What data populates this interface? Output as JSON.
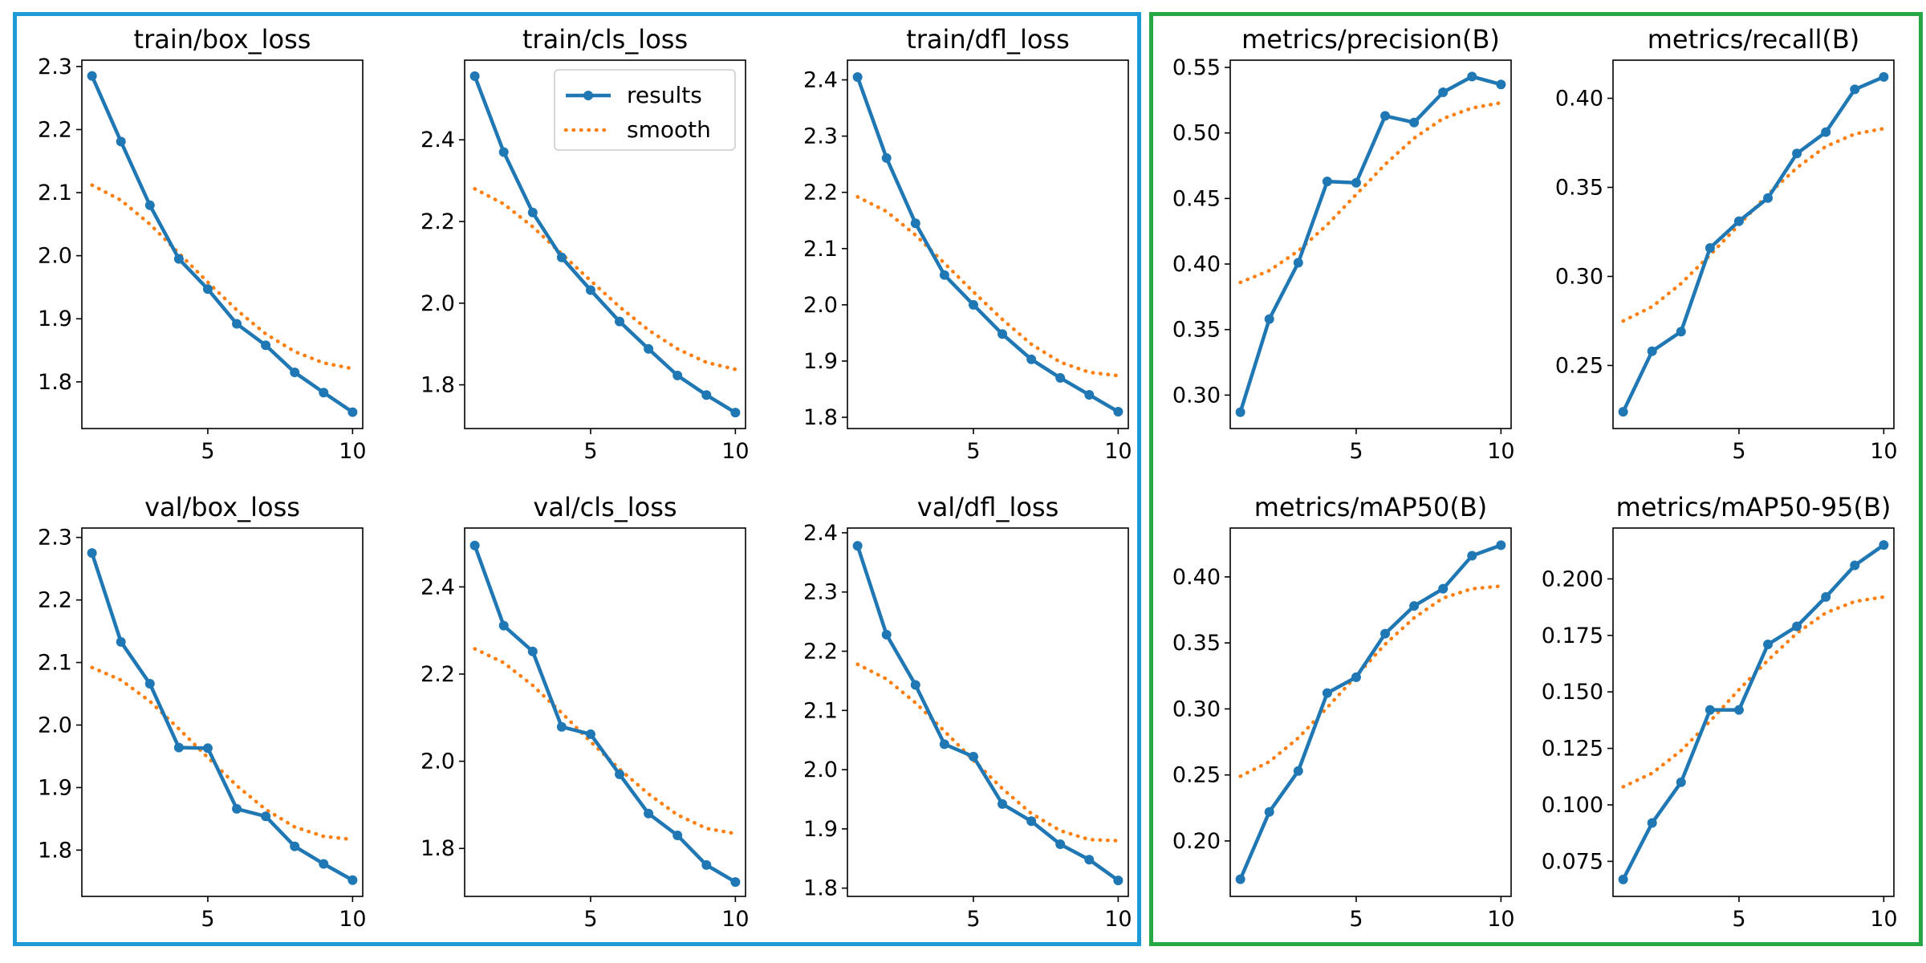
{
  "chart_data": [
    {
      "type": "line",
      "title": "train/box_loss",
      "x": [
        1,
        2,
        3,
        4,
        5,
        6,
        7,
        8,
        9,
        10
      ],
      "series": [
        {
          "name": "results",
          "values": [
            2.285,
            2.181,
            2.08,
            1.995,
            1.947,
            1.892,
            1.858,
            1.815,
            1.783,
            1.752
          ]
        },
        {
          "name": "smooth",
          "values": [
            2.112,
            2.088,
            2.05,
            2.004,
            1.958,
            1.914,
            1.876,
            1.848,
            1.83,
            1.821
          ]
        }
      ],
      "xticks": [
        5,
        10
      ],
      "yticks": [
        1.8,
        1.9,
        2.0,
        2.1,
        2.2,
        2.3
      ],
      "ytick_labels": [
        "1.8",
        "1.9",
        "2.0",
        "2.1",
        "2.2",
        "2.3"
      ],
      "xlim": [
        0.65,
        10.35
      ],
      "ylim": [
        1.726,
        2.31
      ],
      "grid": false
    },
    {
      "type": "line",
      "title": "train/cls_loss",
      "x": [
        1,
        2,
        3,
        4,
        5,
        6,
        7,
        8,
        9,
        10
      ],
      "series": [
        {
          "name": "results",
          "values": [
            2.556,
            2.37,
            2.222,
            2.112,
            2.032,
            1.955,
            1.888,
            1.823,
            1.775,
            1.732
          ]
        },
        {
          "name": "smooth",
          "values": [
            2.28,
            2.243,
            2.187,
            2.121,
            2.055,
            1.991,
            1.934,
            1.888,
            1.855,
            1.838
          ]
        }
      ],
      "xticks": [
        5,
        10
      ],
      "yticks": [
        1.8,
        2.0,
        2.2,
        2.4
      ],
      "ytick_labels": [
        "1.8",
        "2.0",
        "2.2",
        "2.4"
      ],
      "xlim": [
        0.65,
        10.35
      ],
      "ylim": [
        1.693,
        2.595
      ],
      "grid": false,
      "legend": {
        "position": "top-right",
        "entries": [
          "results",
          "smooth"
        ]
      }
    },
    {
      "type": "line",
      "title": "train/dfl_loss",
      "x": [
        1,
        2,
        3,
        4,
        5,
        6,
        7,
        8,
        9,
        10
      ],
      "series": [
        {
          "name": "results",
          "values": [
            2.405,
            2.261,
            2.145,
            2.053,
            2.0,
            1.948,
            1.903,
            1.87,
            1.84,
            1.81
          ]
        },
        {
          "name": "smooth",
          "values": [
            2.192,
            2.166,
            2.124,
            2.074,
            2.023,
            1.974,
            1.93,
            1.898,
            1.88,
            1.874
          ]
        }
      ],
      "xticks": [
        5,
        10
      ],
      "yticks": [
        1.8,
        1.9,
        2.0,
        2.1,
        2.2,
        2.3,
        2.4
      ],
      "ytick_labels": [
        "1.8",
        "1.9",
        "2.0",
        "2.1",
        "2.2",
        "2.3",
        "2.4"
      ],
      "xlim": [
        0.65,
        10.35
      ],
      "ylim": [
        1.78,
        2.435
      ],
      "grid": false
    },
    {
      "type": "line",
      "title": "metrics/precision(B)",
      "x": [
        1,
        2,
        3,
        4,
        5,
        6,
        7,
        8,
        9,
        10
      ],
      "series": [
        {
          "name": "results",
          "values": [
            0.287,
            0.358,
            0.401,
            0.463,
            0.462,
            0.513,
            0.508,
            0.531,
            0.543,
            0.537
          ]
        },
        {
          "name": "smooth",
          "values": [
            0.386,
            0.395,
            0.41,
            0.43,
            0.453,
            0.476,
            0.496,
            0.511,
            0.519,
            0.523
          ]
        }
      ],
      "xticks": [
        5,
        10
      ],
      "yticks": [
        0.3,
        0.35,
        0.4,
        0.45,
        0.5,
        0.55
      ],
      "ytick_labels": [
        "0.30",
        "0.35",
        "0.40",
        "0.45",
        "0.50",
        "0.55"
      ],
      "xlim": [
        0.65,
        10.35
      ],
      "ylim": [
        0.2745,
        0.5555
      ],
      "grid": false
    },
    {
      "type": "line",
      "title": "metrics/recall(B)",
      "x": [
        1,
        2,
        3,
        4,
        5,
        6,
        7,
        8,
        9,
        10
      ],
      "series": [
        {
          "name": "results",
          "values": [
            0.224,
            0.258,
            0.269,
            0.316,
            0.331,
            0.344,
            0.369,
            0.381,
            0.405,
            0.412
          ]
        },
        {
          "name": "smooth",
          "values": [
            0.275,
            0.283,
            0.296,
            0.312,
            0.329,
            0.346,
            0.361,
            0.373,
            0.38,
            0.383
          ]
        }
      ],
      "xticks": [
        5,
        10
      ],
      "yticks": [
        0.25,
        0.3,
        0.35,
        0.4
      ],
      "ytick_labels": [
        "0.25",
        "0.30",
        "0.35",
        "0.40"
      ],
      "xlim": [
        0.65,
        10.35
      ],
      "ylim": [
        0.2146,
        0.4214
      ],
      "grid": false
    },
    {
      "type": "line",
      "title": "val/box_loss",
      "x": [
        1,
        2,
        3,
        4,
        5,
        6,
        7,
        8,
        9,
        10
      ],
      "series": [
        {
          "name": "results",
          "values": [
            2.275,
            2.133,
            2.066,
            1.964,
            1.963,
            1.866,
            1.854,
            1.806,
            1.778,
            1.752
          ]
        },
        {
          "name": "smooth",
          "values": [
            2.092,
            2.072,
            2.038,
            1.994,
            1.948,
            1.903,
            1.865,
            1.837,
            1.822,
            1.817
          ]
        }
      ],
      "xticks": [
        5,
        10
      ],
      "yticks": [
        1.8,
        1.9,
        2.0,
        2.1,
        2.2,
        2.3
      ],
      "ytick_labels": [
        "1.8",
        "1.9",
        "2.0",
        "2.1",
        "2.2",
        "2.3"
      ],
      "xlim": [
        0.65,
        10.35
      ],
      "ylim": [
        1.726,
        2.315
      ],
      "grid": false
    },
    {
      "type": "line",
      "title": "val/cls_loss",
      "x": [
        1,
        2,
        3,
        4,
        5,
        6,
        7,
        8,
        9,
        10
      ],
      "series": [
        {
          "name": "results",
          "values": [
            2.495,
            2.311,
            2.252,
            2.079,
            2.062,
            1.97,
            1.88,
            1.83,
            1.762,
            1.723
          ]
        },
        {
          "name": "smooth",
          "values": [
            2.258,
            2.226,
            2.174,
            2.111,
            2.045,
            1.982,
            1.925,
            1.877,
            1.846,
            1.834
          ]
        }
      ],
      "xticks": [
        5,
        10
      ],
      "yticks": [
        1.8,
        2.0,
        2.2,
        2.4
      ],
      "ytick_labels": [
        "1.8",
        "2.0",
        "2.2",
        "2.4"
      ],
      "xlim": [
        0.65,
        10.35
      ],
      "ylim": [
        1.69,
        2.535
      ],
      "grid": false
    },
    {
      "type": "line",
      "title": "val/dfl_loss",
      "x": [
        1,
        2,
        3,
        4,
        5,
        6,
        7,
        8,
        9,
        10
      ],
      "series": [
        {
          "name": "results",
          "values": [
            2.378,
            2.228,
            2.143,
            2.043,
            2.022,
            1.942,
            1.913,
            1.874,
            1.848,
            1.813
          ]
        },
        {
          "name": "smooth",
          "values": [
            2.178,
            2.153,
            2.113,
            2.065,
            2.016,
            1.968,
            1.926,
            1.897,
            1.882,
            1.88
          ]
        }
      ],
      "xticks": [
        5,
        10
      ],
      "yticks": [
        1.8,
        1.9,
        2.0,
        2.1,
        2.2,
        2.3,
        2.4
      ],
      "ytick_labels": [
        "1.8",
        "1.9",
        "2.0",
        "2.1",
        "2.2",
        "2.3",
        "2.4"
      ],
      "xlim": [
        0.65,
        10.35
      ],
      "ylim": [
        1.786,
        2.408
      ],
      "grid": false
    },
    {
      "type": "line",
      "title": "metrics/mAP50(B)",
      "x": [
        1,
        2,
        3,
        4,
        5,
        6,
        7,
        8,
        9,
        10
      ],
      "series": [
        {
          "name": "results",
          "values": [
            0.171,
            0.222,
            0.253,
            0.312,
            0.324,
            0.357,
            0.378,
            0.391,
            0.416,
            0.424
          ]
        },
        {
          "name": "smooth",
          "values": [
            0.249,
            0.26,
            0.278,
            0.301,
            0.325,
            0.349,
            0.369,
            0.384,
            0.391,
            0.393
          ]
        }
      ],
      "xticks": [
        5,
        10
      ],
      "yticks": [
        0.2,
        0.25,
        0.3,
        0.35,
        0.4
      ],
      "ytick_labels": [
        "0.20",
        "0.25",
        "0.30",
        "0.35",
        "0.40"
      ],
      "xlim": [
        0.65,
        10.35
      ],
      "ylim": [
        0.158,
        0.437
      ],
      "grid": false
    },
    {
      "type": "line",
      "title": "metrics/mAP50-95(B)",
      "x": [
        1,
        2,
        3,
        4,
        5,
        6,
        7,
        8,
        9,
        10
      ],
      "series": [
        {
          "name": "results",
          "values": [
            0.067,
            0.092,
            0.11,
            0.142,
            0.142,
            0.171,
            0.179,
            0.192,
            0.206,
            0.215
          ]
        },
        {
          "name": "smooth",
          "values": [
            0.108,
            0.114,
            0.124,
            0.137,
            0.151,
            0.164,
            0.176,
            0.185,
            0.19,
            0.192
          ]
        }
      ],
      "xticks": [
        5,
        10
      ],
      "yticks": [
        0.075,
        0.1,
        0.125,
        0.15,
        0.175,
        0.2
      ],
      "ytick_labels": [
        "0.075",
        "0.100",
        "0.125",
        "0.150",
        "0.175",
        "0.200"
      ],
      "xlim": [
        0.65,
        10.35
      ],
      "ylim": [
        0.0595,
        0.2225
      ],
      "grid": false
    }
  ],
  "colors": {
    "results": "#1f77b4",
    "smooth": "#ff7f0e",
    "loss_group_frame": "#1e9bd7",
    "metrics_group_frame": "#27a844"
  }
}
